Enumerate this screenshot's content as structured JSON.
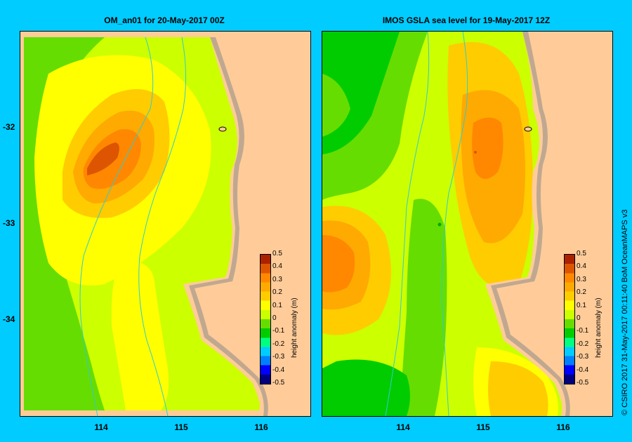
{
  "panels": [
    {
      "title": "OM_an01  for 20-May-2017 00Z"
    },
    {
      "title": "IMOS GSLA sea level   for 19-May-2017 12Z"
    }
  ],
  "y_tick_labels": [
    "-32",
    "-33",
    "-34"
  ],
  "x_tick_labels": [
    "114",
    "115",
    "116"
  ],
  "colorbar": {
    "label": "height anomaly (m)",
    "ticks": [
      "0.5",
      "0.4",
      "0.3",
      "0.2",
      "0.1",
      "0",
      "-0.1",
      "-0.2",
      "-0.3",
      "-0.4",
      "-0.5"
    ],
    "colors": [
      "#000080",
      "#0000ff",
      "#0080ff",
      "#00ccff",
      "#00ff80",
      "#00cc00",
      "#66dd00",
      "#ccff00",
      "#ffff00",
      "#ffcc00",
      "#ffaa00",
      "#ff8800",
      "#dd5500",
      "#aa2200"
    ]
  },
  "credit": "© CSIRO 2017   31-May-2017 00:11:40 BoM OceanMAPS v3",
  "colors": {
    "land": "#ffcc99",
    "shelf": "#c0a890",
    "background": "#00ccff",
    "isobath": "#33cccc"
  }
}
